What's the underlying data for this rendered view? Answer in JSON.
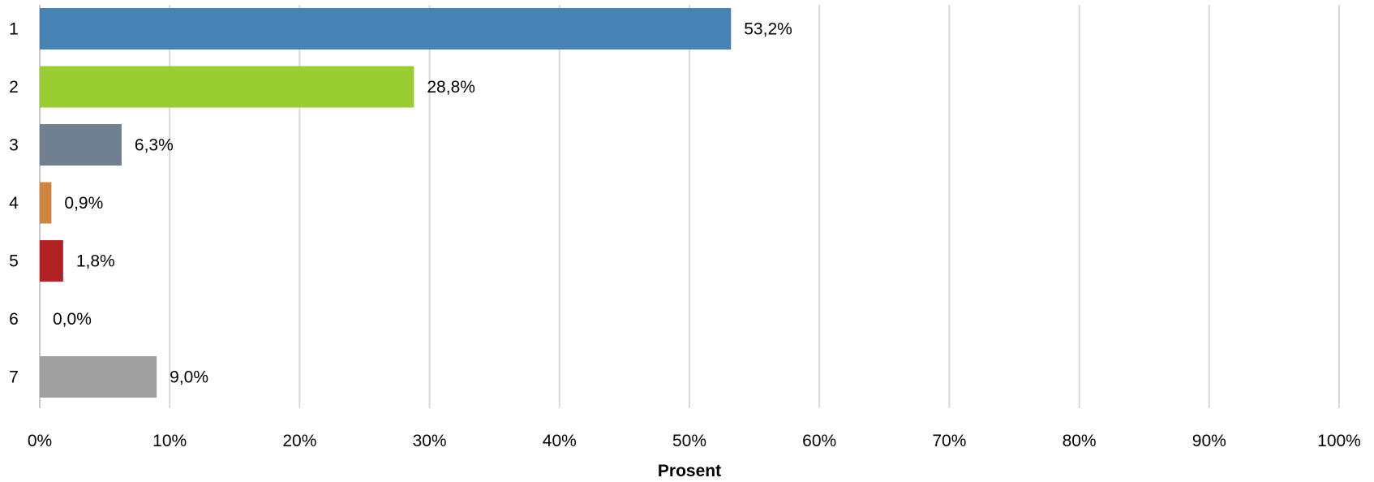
{
  "chart_data": {
    "type": "bar",
    "orientation": "horizontal",
    "categories": [
      "1",
      "2",
      "3",
      "4",
      "5",
      "6",
      "7"
    ],
    "values": [
      53.2,
      28.8,
      6.3,
      0.9,
      1.8,
      0.0,
      9.0
    ],
    "value_labels": [
      "53,2%",
      "28,8%",
      "6,3%",
      "0,9%",
      "1,8%",
      "0,0%",
      "9,0%"
    ],
    "colors": [
      "#4682B4",
      "#9ACD32",
      "#708090",
      "#CD853F",
      "#B22222",
      "#FFFFFF",
      "#A0A0A0"
    ],
    "xlim": [
      0,
      100
    ],
    "x_ticks": [
      0,
      10,
      20,
      30,
      40,
      50,
      60,
      70,
      80,
      90,
      100
    ],
    "x_tick_labels": [
      "0%",
      "10%",
      "20%",
      "30%",
      "40%",
      "50%",
      "60%",
      "70%",
      "80%",
      "90%",
      "100%"
    ],
    "xlabel": "Prosent",
    "ylabel": "",
    "grid": "vertical",
    "legend": "none"
  }
}
